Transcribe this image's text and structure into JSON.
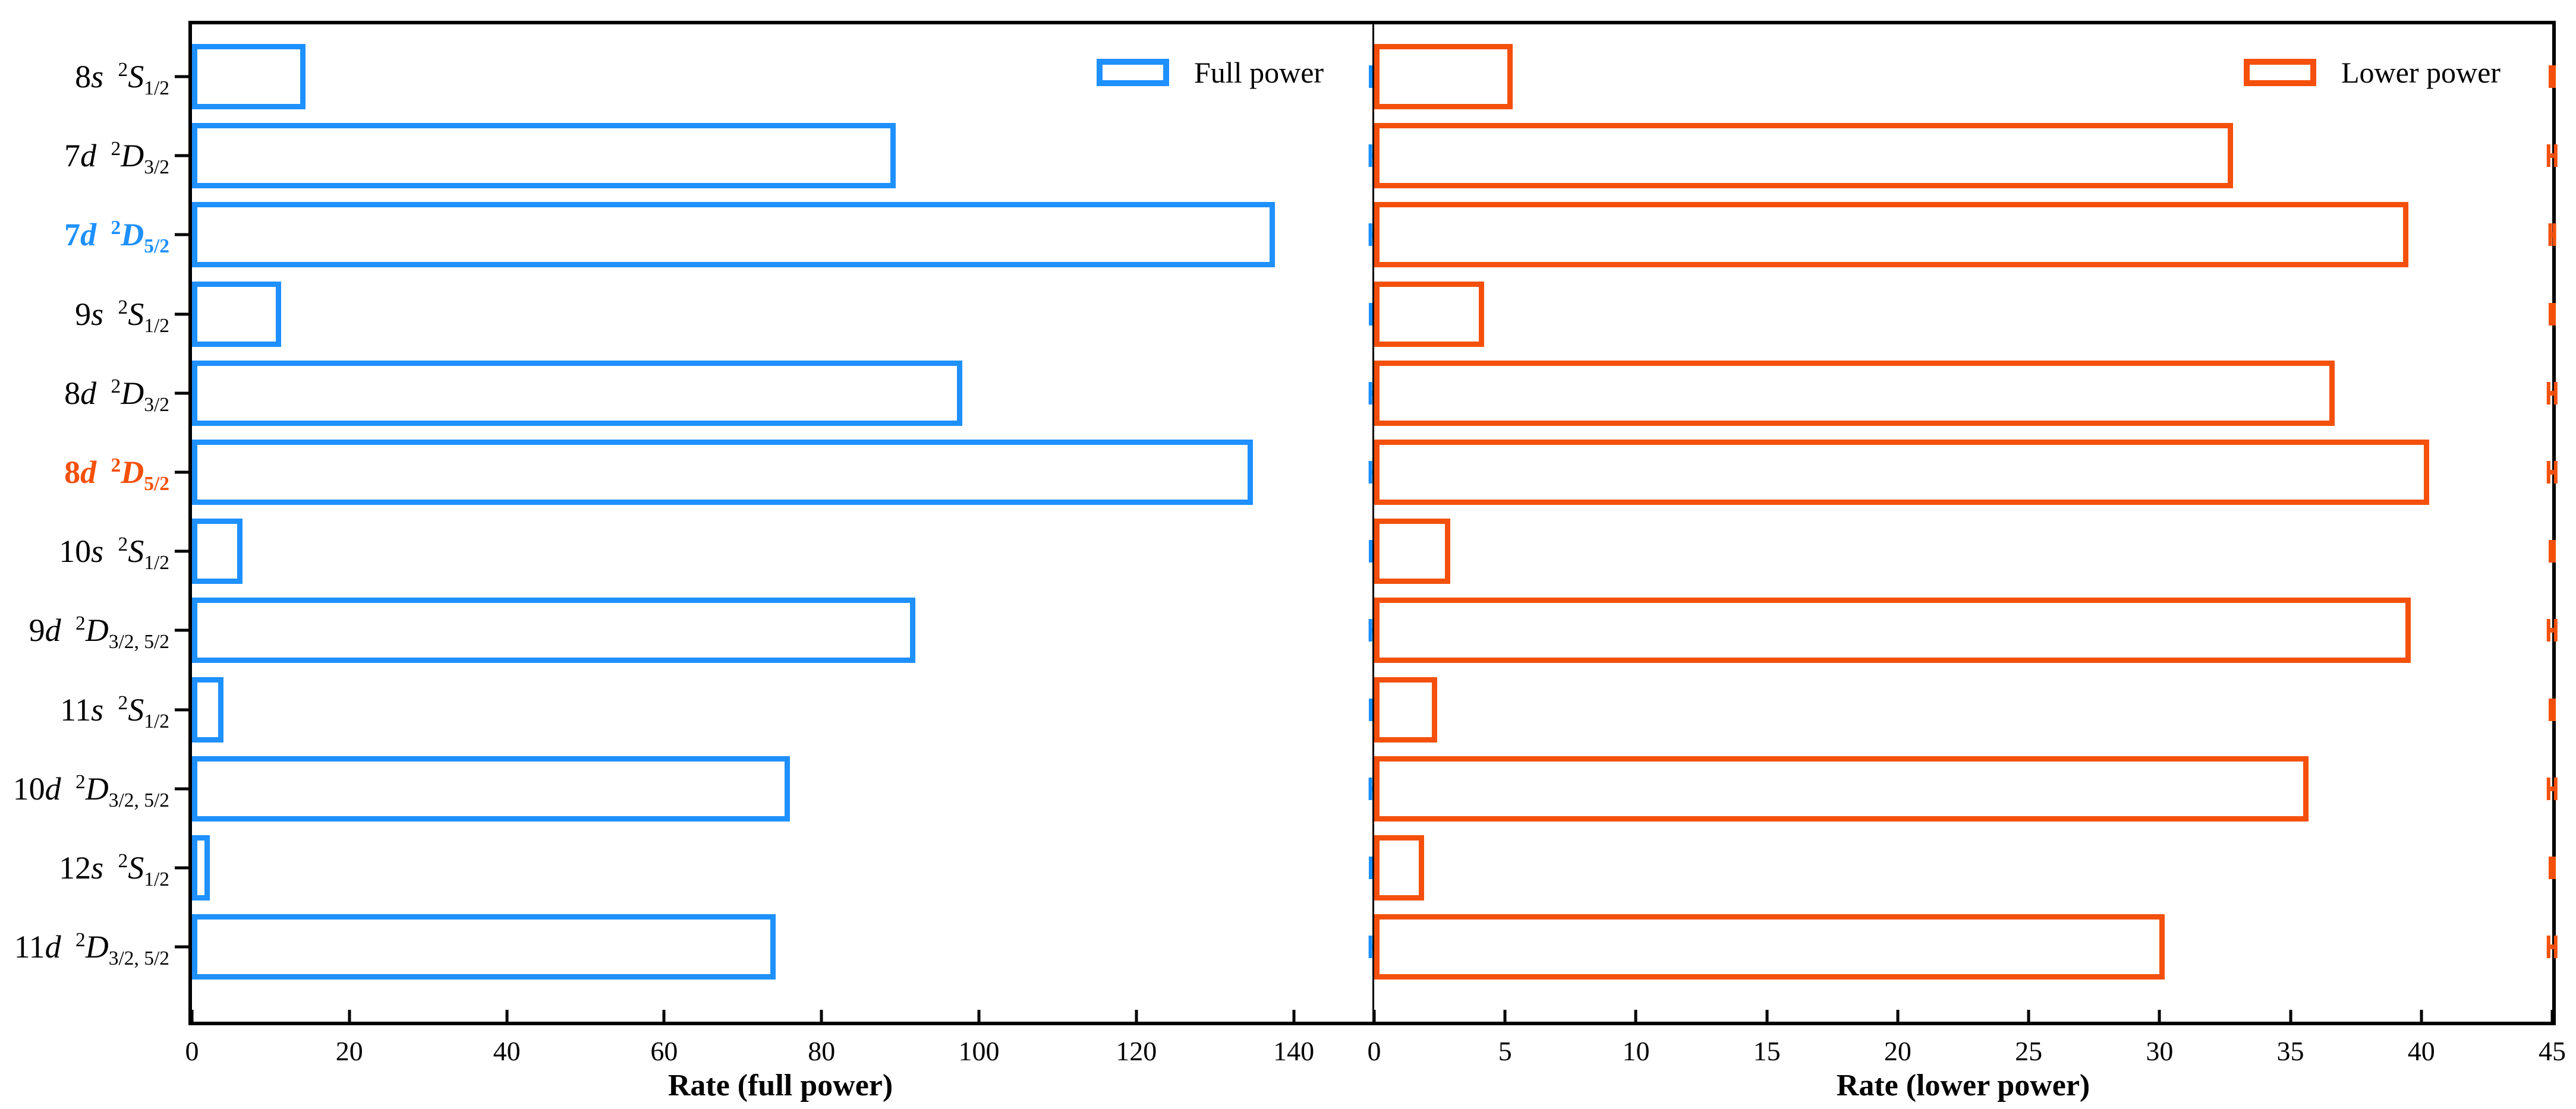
{
  "figure": {
    "background": "#ffffff",
    "full_power_color": "#1E90FF",
    "lower_power_color": "#F4500C",
    "axis_color": "#000000"
  },
  "states": [
    {
      "n": "8",
      "l": "s",
      "sup": "2",
      "term": "S",
      "j": "1/2",
      "color": "#000000",
      "bold": false
    },
    {
      "n": "7",
      "l": "d",
      "sup": "2",
      "term": "D",
      "j": "3/2",
      "color": "#000000",
      "bold": false
    },
    {
      "n": "7",
      "l": "d",
      "sup": "2",
      "term": "D",
      "j": "5/2",
      "color": "#1E90FF",
      "bold": true
    },
    {
      "n": "9",
      "l": "s",
      "sup": "2",
      "term": "S",
      "j": "1/2",
      "color": "#000000",
      "bold": false
    },
    {
      "n": "8",
      "l": "d",
      "sup": "2",
      "term": "D",
      "j": "3/2",
      "color": "#000000",
      "bold": false
    },
    {
      "n": "8",
      "l": "d",
      "sup": "2",
      "term": "D",
      "j": "5/2",
      "color": "#F4500C",
      "bold": true
    },
    {
      "n": "10",
      "l": "s",
      "sup": "2",
      "term": "S",
      "j": "1/2",
      "color": "#000000",
      "bold": false
    },
    {
      "n": "9",
      "l": "d",
      "sup": "2",
      "term": "D",
      "j": "3/2, 5/2",
      "color": "#000000",
      "bold": false
    },
    {
      "n": "11",
      "l": "s",
      "sup": "2",
      "term": "S",
      "j": "1/2",
      "color": "#000000",
      "bold": false
    },
    {
      "n": "10",
      "l": "d",
      "sup": "2",
      "term": "D",
      "j": "3/2, 5/2",
      "color": "#000000",
      "bold": false
    },
    {
      "n": "12",
      "l": "s",
      "sup": "2",
      "term": "S",
      "j": "1/2",
      "color": "#000000",
      "bold": false
    },
    {
      "n": "11",
      "l": "d",
      "sup": "2",
      "term": "D",
      "j": "3/2, 5/2",
      "color": "#000000",
      "bold": false
    }
  ],
  "chart_data": [
    {
      "type": "bar",
      "orientation": "horizontal",
      "legend": "Full power",
      "xlabel": "Rate (full power)",
      "color": "#1E90FF",
      "xlim": [
        0,
        150
      ],
      "xticks": [
        0,
        20,
        40,
        60,
        80,
        100,
        120,
        140
      ],
      "categories": [
        "8s 2S1/2",
        "7d 2D3/2",
        "7d 2D5/2",
        "9s 2S1/2",
        "8d 2D3/2",
        "8d 2D5/2",
        "10s 2S1/2",
        "9d 2D3/2,5/2",
        "11s 2S1/2",
        "10d 2D3/2,5/2",
        "12s 2S1/2",
        "11d 2D3/2,5/2"
      ],
      "values": [
        14.4,
        89.4,
        137.6,
        11.3,
        97.9,
        134.8,
        6.4,
        91.9,
        4.0,
        76.0,
        2.3,
        74.2
      ],
      "errors": [
        0.3,
        0.5,
        0.5,
        0.3,
        0.5,
        0.5,
        0.2,
        0.5,
        0.2,
        0.5,
        0.2,
        0.5
      ],
      "grid": false,
      "legend_position": "upper right"
    },
    {
      "type": "bar",
      "orientation": "horizontal",
      "legend": "Lower power",
      "xlabel": "Rate (lower power)",
      "color": "#F4500C",
      "xlim": [
        0,
        45
      ],
      "xticks": [
        0,
        5,
        10,
        15,
        20,
        25,
        30,
        35,
        40,
        45
      ],
      "categories": [
        "8s 2S1/2",
        "7d 2D3/2",
        "7d 2D5/2",
        "9s 2S1/2",
        "8d 2D3/2",
        "8d 2D5/2",
        "10s 2S1/2",
        "9d 2D3/2,5/2",
        "11s 2S1/2",
        "10d 2D3/2,5/2",
        "12s 2S1/2",
        "11d 2D3/2,5/2"
      ],
      "values": [
        5.3,
        32.8,
        39.5,
        4.2,
        36.7,
        40.3,
        2.9,
        39.6,
        2.4,
        35.7,
        1.9,
        30.2
      ],
      "errors": [
        0.1,
        0.2,
        0.15,
        0.1,
        0.2,
        0.2,
        0.1,
        0.2,
        0.1,
        0.2,
        0.1,
        0.2
      ],
      "grid": false,
      "legend_position": "upper right"
    }
  ]
}
